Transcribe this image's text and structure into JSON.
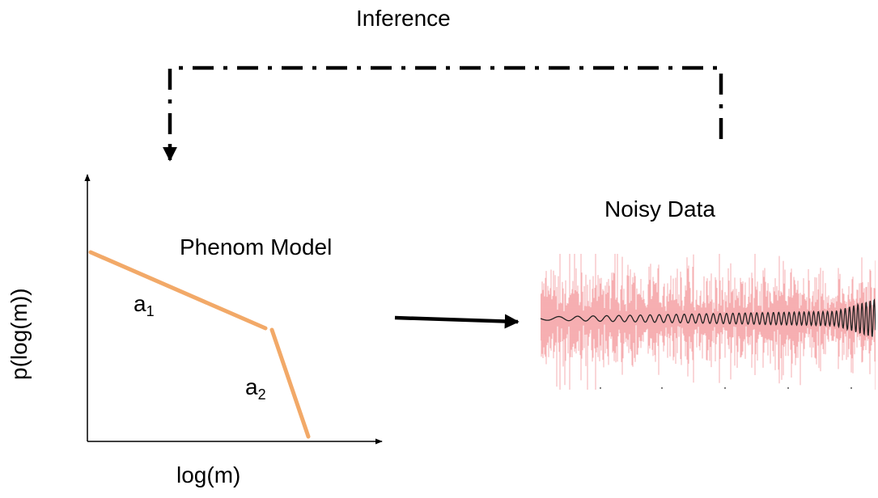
{
  "diagram": {
    "inference_label": "Inference",
    "noisy_data_label": "Noisy Data",
    "model_label": "Phenom Model",
    "x_axis_label": "log(m)",
    "y_axis_label": "p(log(m))",
    "segment_1": {
      "symbol": "a",
      "subscript": "1"
    },
    "segment_2": {
      "symbol": "a",
      "subscript": "2"
    },
    "colors": {
      "model_line": "#f2a968",
      "noise": "#f2888c",
      "signal": "#222222",
      "arrow": "#000000"
    }
  }
}
